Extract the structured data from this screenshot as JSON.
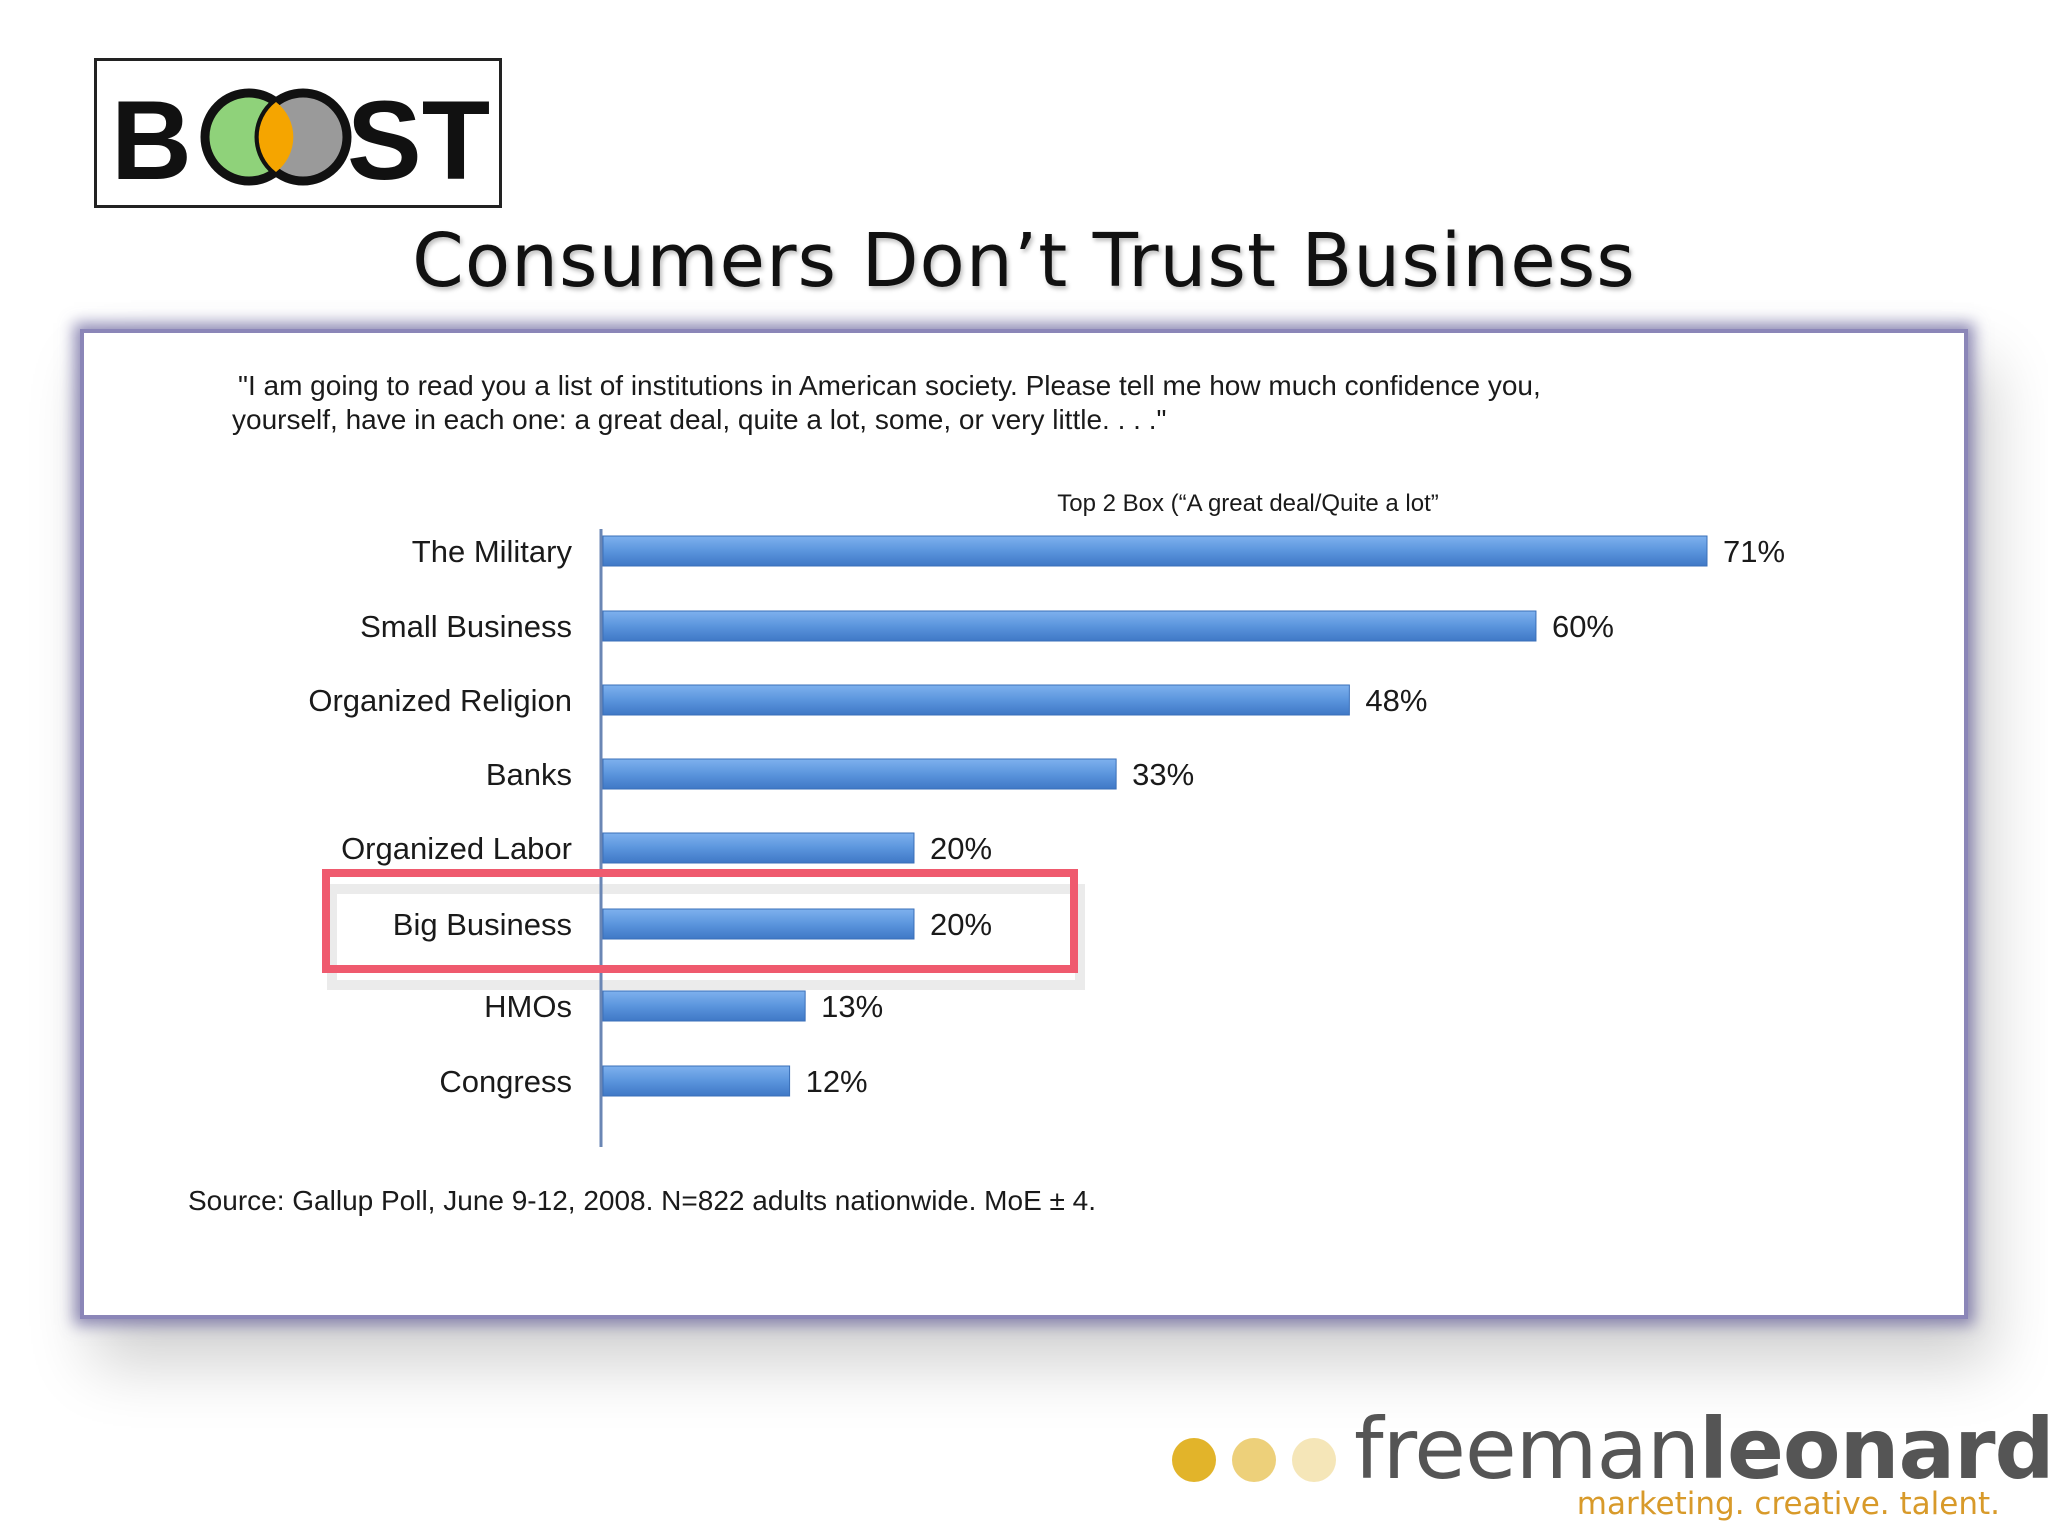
{
  "logo": {
    "text": "BOOST",
    "left": "B",
    "right": "ST"
  },
  "slide": {
    "title": "Consumers Don’t Trust Business"
  },
  "chart_data": {
    "type": "bar",
    "orientation": "horizontal",
    "question_line1": "\"I am going to read you a list of institutions in American society. Please tell me how much confidence you,",
    "question_line2": "yourself, have in each one: a great deal, quite a lot, some, or very little. . . .\"",
    "series_title": "Top 2 Box (“A great deal/Quite a lot”",
    "categories": [
      "The Military",
      "Small Business",
      "Organized Religion",
      "Banks",
      "Organized Labor",
      "Big Business",
      "HMOs",
      "Congress"
    ],
    "values": [
      71,
      60,
      48,
      33,
      20,
      20,
      13,
      12
    ],
    "value_labels": [
      "71%",
      "60%",
      "48%",
      "33%",
      "20%",
      "20%",
      "13%",
      "12%"
    ],
    "highlighted_category": "Big Business",
    "highlight_color": "#ef5a6e",
    "bar_color": "#5b95dd",
    "grid": false,
    "source": "Source: Gallup Poll, June 9-12, 2008. N=822 adults nationwide. MoE ± 4."
  },
  "brand": {
    "name_light": "freeman",
    "name_bold": "leonard",
    "tagline": "marketing. creative. talent.",
    "dot_colors": [
      "#e2b42a",
      "#edd07a",
      "#f5e6b8"
    ]
  }
}
